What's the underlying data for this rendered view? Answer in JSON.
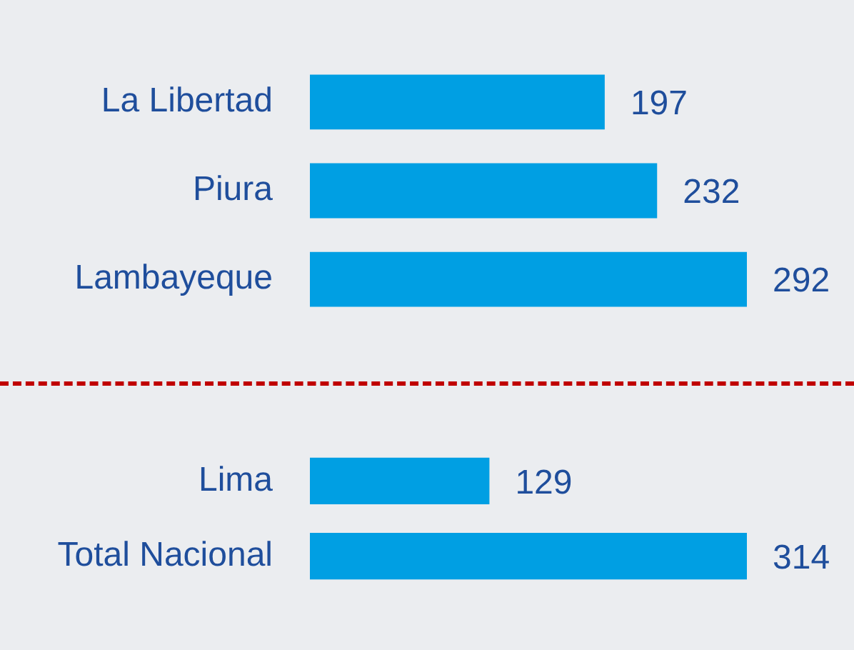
{
  "chart_data": [
    {
      "type": "bar",
      "orientation": "horizontal",
      "categories": [
        "La Libertad",
        "Piura",
        "Lambayeque"
      ],
      "values": [
        197,
        232,
        292
      ],
      "color": "#009fe3",
      "tick_labels": "y",
      "data_labels": true
    },
    {
      "type": "bar",
      "orientation": "horizontal",
      "categories": [
        "Lima",
        "Total Nacional"
      ],
      "values": [
        129,
        314
      ],
      "color": "#009fe3",
      "tick_labels": "y",
      "data_labels": true
    }
  ]
}
